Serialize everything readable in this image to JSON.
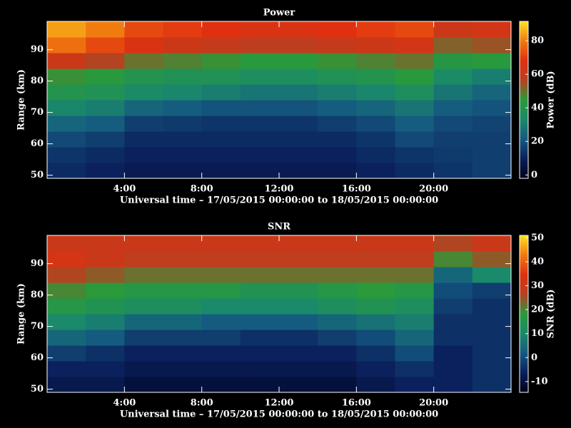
{
  "chart_data": [
    {
      "type": "heatmap",
      "title": "Power",
      "x_label": "Universal time – 17/05/2015 00:00:00 to 18/05/2015 00:00:00",
      "y_label": "Range (km)",
      "colorbar_label": "Power (dB)",
      "xlim": [
        0,
        24
      ],
      "xticks": [
        {
          "value": 4,
          "label": "4:00"
        },
        {
          "value": 8,
          "label": "8:00"
        },
        {
          "value": 12,
          "label": "12:00"
        },
        {
          "value": 16,
          "label": "16:00"
        },
        {
          "value": 20,
          "label": "20:00"
        }
      ],
      "ylim": [
        49,
        99
      ],
      "yticks": [
        50,
        60,
        70,
        80,
        90
      ],
      "clim": [
        -2,
        91.5
      ],
      "cticks": [
        0,
        20,
        40,
        60,
        80
      ],
      "colormap": [
        "#000018",
        "#0a1f5c",
        "#155a80",
        "#1a8a6a",
        "#2a9a3a",
        "#b84020",
        "#e03010",
        "#f07a10",
        "#ffe020"
      ],
      "x_bins": [
        0,
        2,
        4,
        6,
        8,
        10,
        12,
        14,
        16,
        18,
        20,
        22,
        24
      ],
      "y_bins": [
        49,
        54,
        59,
        64,
        69,
        74,
        79,
        84,
        89,
        94,
        99
      ],
      "values": [
        [
          12,
          10,
          8,
          8,
          8,
          8,
          8,
          8,
          10,
          12,
          14,
          16
        ],
        [
          14,
          12,
          10,
          10,
          10,
          10,
          10,
          10,
          12,
          14,
          15,
          16
        ],
        [
          18,
          16,
          12,
          12,
          12,
          12,
          12,
          12,
          14,
          18,
          16,
          16
        ],
        [
          24,
          22,
          16,
          15,
          14,
          14,
          14,
          16,
          18,
          22,
          18,
          17
        ],
        [
          32,
          30,
          24,
          22,
          20,
          20,
          20,
          22,
          24,
          28,
          22,
          20
        ],
        [
          40,
          38,
          34,
          32,
          30,
          28,
          28,
          30,
          32,
          36,
          28,
          24
        ],
        [
          46,
          44,
          40,
          38,
          38,
          36,
          36,
          38,
          40,
          44,
          34,
          30
        ],
        [
          62,
          56,
          50,
          48,
          46,
          44,
          44,
          46,
          48,
          50,
          42,
          44
        ],
        [
          78,
          72,
          66,
          62,
          60,
          58,
          58,
          60,
          62,
          64,
          52,
          54
        ],
        [
          84,
          80,
          72,
          70,
          68,
          66,
          66,
          68,
          70,
          72,
          62,
          64
        ]
      ]
    },
    {
      "type": "heatmap",
      "title": "SNR",
      "x_label": "Universal time – 17/05/2015 00:00:00 to 18/05/2015 00:00:00",
      "y_label": "Range (km)",
      "colorbar_label": "SNR (dB)",
      "xlim": [
        0,
        24
      ],
      "xticks": [
        {
          "value": 4,
          "label": "4:00"
        },
        {
          "value": 8,
          "label": "8:00"
        },
        {
          "value": 12,
          "label": "12:00"
        },
        {
          "value": 16,
          "label": "16:00"
        },
        {
          "value": 20,
          "label": "20:00"
        }
      ],
      "ylim": [
        49,
        99
      ],
      "yticks": [
        50,
        60,
        70,
        80,
        90
      ],
      "clim": [
        -14.5,
        51
      ],
      "cticks": [
        -10,
        0,
        10,
        20,
        30,
        40,
        50
      ],
      "colormap": [
        "#000018",
        "#0a1f5c",
        "#155a80",
        "#1a8a6a",
        "#2a9a3a",
        "#b84020",
        "#e03010",
        "#f07a10",
        "#ffe020"
      ],
      "x_bins": [
        0,
        2,
        4,
        6,
        8,
        10,
        12,
        14,
        16,
        18,
        20,
        22,
        24
      ],
      "y_bins": [
        49,
        54,
        59,
        64,
        69,
        74,
        79,
        84,
        89,
        94,
        99
      ],
      "values": [
        [
          -8,
          -8,
          -10,
          -10,
          -10,
          -10,
          -10,
          -10,
          -8,
          -6,
          -6,
          -4
        ],
        [
          -6,
          -6,
          -8,
          -8,
          -8,
          -8,
          -8,
          -8,
          -6,
          -4,
          -6,
          -4
        ],
        [
          -2,
          -4,
          -6,
          -6,
          -6,
          -6,
          -6,
          -6,
          -4,
          0,
          -6,
          -4
        ],
        [
          4,
          2,
          -2,
          -2,
          -2,
          -4,
          -4,
          -2,
          0,
          4,
          -4,
          -4
        ],
        [
          10,
          8,
          4,
          4,
          2,
          2,
          2,
          4,
          6,
          8,
          -4,
          -4
        ],
        [
          16,
          14,
          12,
          12,
          10,
          10,
          10,
          12,
          14,
          12,
          -2,
          -4
        ],
        [
          20,
          18,
          16,
          16,
          16,
          14,
          14,
          16,
          18,
          16,
          0,
          -2
        ],
        [
          26,
          24,
          22,
          22,
          22,
          22,
          22,
          22,
          22,
          22,
          4,
          10
        ],
        [
          32,
          30,
          28,
          28,
          28,
          28,
          28,
          28,
          28,
          28,
          20,
          24
        ],
        [
          30,
          30,
          30,
          30,
          30,
          30,
          30,
          30,
          30,
          30,
          26,
          30
        ]
      ]
    }
  ]
}
